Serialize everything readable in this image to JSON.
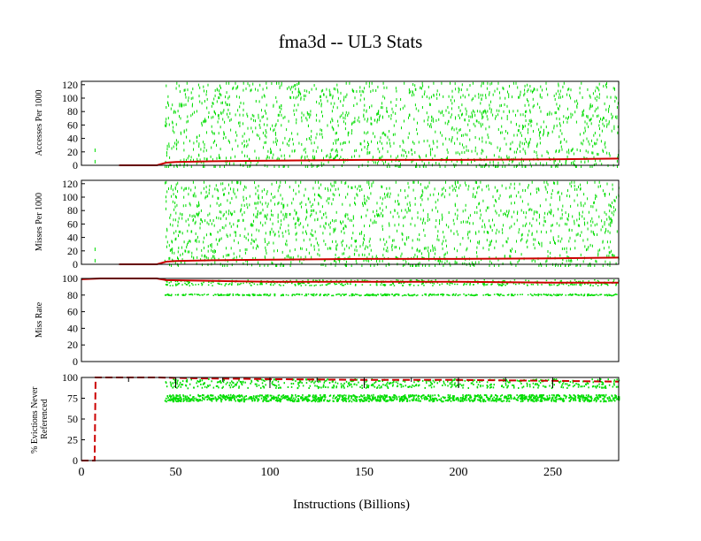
{
  "chart_data": [
    {
      "type": "scatter",
      "title": "fma3d -- UL3  Stats",
      "ylabel": "Accesses Per 1000",
      "xlabel": "",
      "xlim": [
        0,
        285
      ],
      "ylim": [
        0,
        125
      ],
      "yticks": [
        "0",
        "20",
        "40",
        "60",
        "80",
        "100",
        "120"
      ],
      "colors": {
        "points": "#00dd00",
        "line": "#cc0000"
      },
      "series": [
        {
          "values_sample": [
            [
              20,
              0
            ],
            [
              30,
              0
            ],
            [
              40,
              0
            ],
            [
              45,
              4
            ],
            [
              50,
              5
            ],
            [
              70,
              6
            ],
            [
              100,
              7
            ],
            [
              150,
              8
            ],
            [
              200,
              8
            ],
            [
              250,
              9
            ],
            [
              285,
              10
            ]
          ]
        }
      ]
    },
    {
      "type": "scatter",
      "ylabel": "Misses Per 1000",
      "xlim": [
        0,
        285
      ],
      "ylim": [
        0,
        125
      ],
      "yticks": [
        "0",
        "20",
        "40",
        "60",
        "80",
        "100",
        "120"
      ],
      "series": [
        {
          "values_sample": [
            [
              20,
              0
            ],
            [
              30,
              0
            ],
            [
              40,
              0
            ],
            [
              45,
              4
            ],
            [
              50,
              5
            ],
            [
              70,
              6
            ],
            [
              100,
              7
            ],
            [
              150,
              8
            ],
            [
              200,
              8
            ],
            [
              250,
              9
            ],
            [
              285,
              10
            ]
          ]
        }
      ]
    },
    {
      "type": "scatter",
      "ylabel": "Miss Rate",
      "xlim": [
        0,
        285
      ],
      "ylim": [
        0,
        100
      ],
      "yticks": [
        "0",
        "20",
        "40",
        "60",
        "80",
        "100"
      ],
      "series": [
        {
          "values_sample": [
            [
              0,
              99
            ],
            [
              10,
              100
            ],
            [
              40,
              100
            ],
            [
              45,
              98
            ],
            [
              70,
              97
            ],
            [
              100,
              96
            ],
            [
              150,
              96
            ],
            [
              200,
              96
            ],
            [
              250,
              95
            ],
            [
              285,
              95
            ]
          ]
        }
      ]
    },
    {
      "type": "scatter",
      "ylabel": "% Evictions Never Referenced",
      "xlabel": "Instructions (Billions)",
      "xlim": [
        0,
        285
      ],
      "ylim": [
        0,
        100
      ],
      "yticks": [
        "0",
        "25",
        "50",
        "75",
        "100"
      ],
      "xticks": [
        "0",
        "50",
        "100",
        "150",
        "200",
        "250"
      ],
      "series": [
        {
          "values_sample": [
            [
              0,
              0
            ],
            [
              7,
              0
            ],
            [
              7.5,
              100
            ],
            [
              40,
              100
            ],
            [
              60,
              99
            ],
            [
              100,
              98
            ],
            [
              150,
              97
            ],
            [
              200,
              97
            ],
            [
              250,
              96
            ],
            [
              285,
              95
            ]
          ]
        }
      ]
    }
  ]
}
